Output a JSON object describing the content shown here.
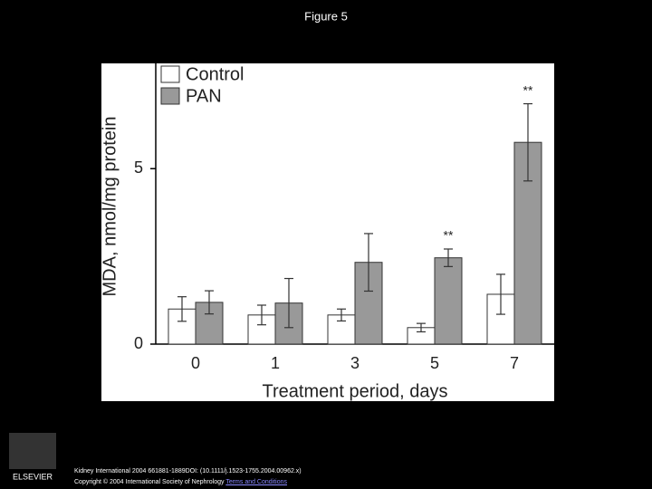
{
  "slide_title": "Figure 5",
  "chart_data": {
    "type": "bar",
    "categories": [
      "0",
      "1",
      "3",
      "5",
      "7"
    ],
    "series": [
      {
        "name": "Control",
        "color": "#ffffff",
        "values": [
          1.0,
          0.83,
          0.83,
          0.47,
          1.42
        ],
        "errors": [
          0.35,
          0.28,
          0.17,
          0.12,
          0.57
        ]
      },
      {
        "name": "PAN",
        "color": "#999999",
        "values": [
          1.19,
          1.17,
          2.33,
          2.46,
          5.75
        ],
        "errors": [
          0.33,
          0.7,
          0.82,
          0.25,
          1.1
        ],
        "value_annotations": [
          null,
          null,
          null,
          "**",
          "**"
        ]
      }
    ],
    "ylim": [
      0,
      8
    ],
    "yticks": [
      0,
      5
    ],
    "x_label": "Treatment period, days",
    "y_label": "MDA, nmol/mg protein",
    "legend": "top-left"
  },
  "footer": {
    "citation": "Kidney International 2004 661881-1889DOI: (10.1111/j.1523-1755.2004.00962.x)",
    "copyright": "Copyright © 2004 International Society of Nephrology",
    "link": "Terms and Conditions",
    "logo": "ELSEVIER"
  }
}
